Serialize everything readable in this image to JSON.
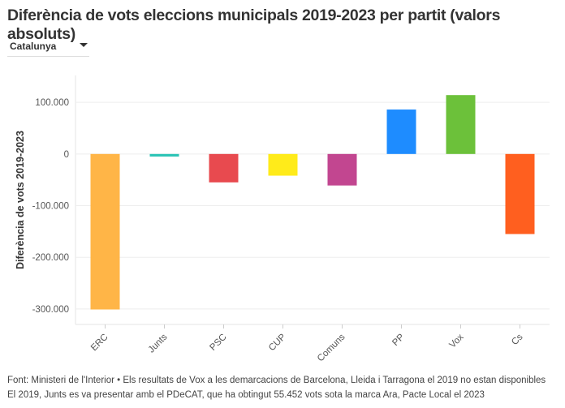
{
  "title": "Diferència de vots eleccions municipals 2019-2023 per partit (valors absoluts)",
  "dropdown": {
    "selected": "Catalunya",
    "icon": "caret-down-icon"
  },
  "chart_data": {
    "type": "bar",
    "ylabel": "Diferència de vots 2019-2023",
    "xlabel": "",
    "categories": [
      "ERC",
      "Junts",
      "PSC",
      "CUP",
      "Comuns",
      "PP",
      "Vox",
      "Cs"
    ],
    "values": [
      -301000,
      -5000,
      -55000,
      -42000,
      -61000,
      86000,
      114000,
      -155000
    ],
    "colors": [
      "#FFB547",
      "#2EC4B6",
      "#E84A4F",
      "#FFEB1A",
      "#C24690",
      "#1E8CFF",
      "#6CC13A",
      "#FF5F1F"
    ],
    "ylim": [
      -330000,
      152000
    ],
    "yticks": [
      100000,
      0,
      -100000,
      -200000,
      -300000
    ],
    "ytick_labels": [
      "100.000",
      "0",
      "-100.000",
      "-200.000",
      "-300.000"
    ],
    "grid": true,
    "legend": "none"
  },
  "footer": {
    "line1": "Font: Ministeri de l'Interior • Els resultats de Vox a les demarcacions de Barcelona, Lleida i Tarragona el 2019 no estan disponibles",
    "line2": "El 2019, Junts es va presentar amb el PDeCAT, que ha obtingut 55.452 vots sota la marca Ara, Pacte Local el 2023"
  }
}
